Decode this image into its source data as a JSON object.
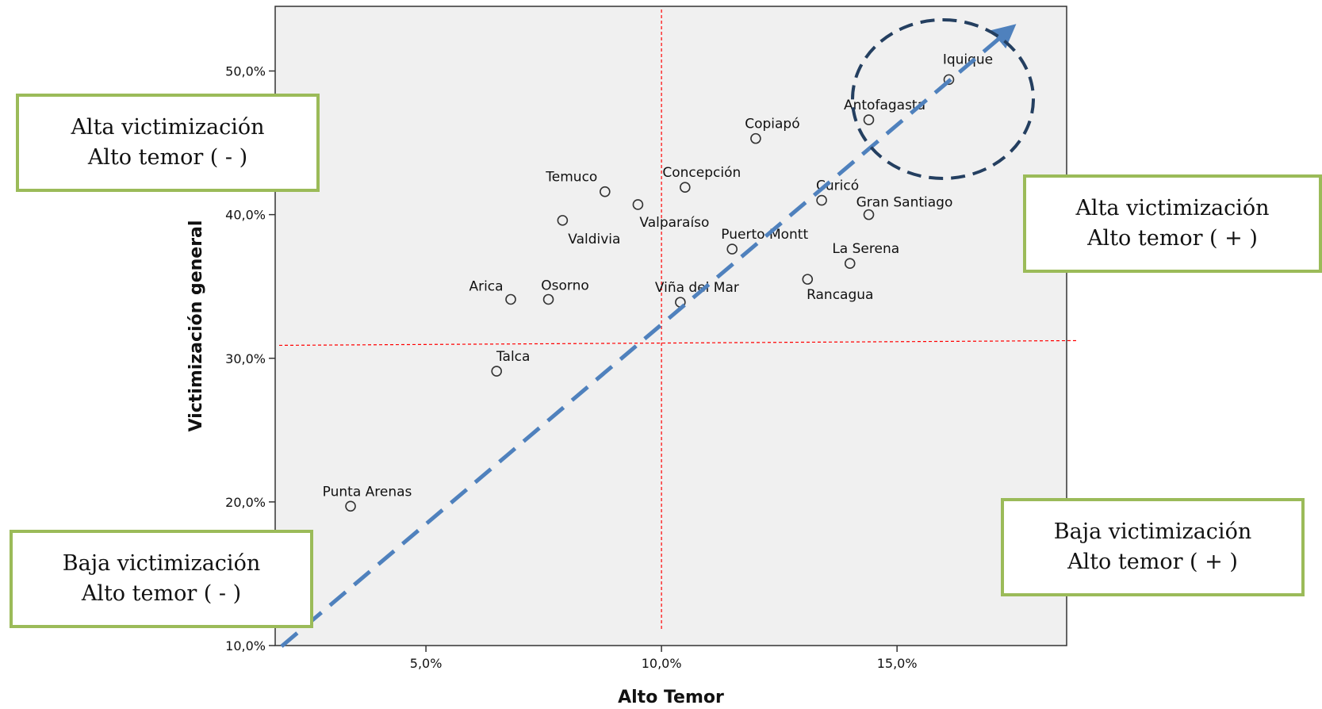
{
  "chart_data": {
    "type": "scatter",
    "xlabel": "Alto Temor",
    "ylabel": "Victimización general",
    "xlim": [
      1.8,
      18.6
    ],
    "ylim": [
      10.0,
      54.5
    ],
    "x_ticks": [
      5,
      10,
      15
    ],
    "x_tick_labels": [
      "5,0%",
      "10,0%",
      "15,0%"
    ],
    "y_ticks": [
      10,
      20,
      30,
      40,
      50
    ],
    "y_tick_labels": [
      "10,0%",
      "20,0%",
      "30,0%",
      "40,0%",
      "50,0%"
    ],
    "grid": false,
    "reference_lines": {
      "x": 10.0,
      "y": 30.9
    },
    "colors": {
      "plot_bg": "#f0f0f0",
      "reference": "#ff0000",
      "trend": "#4f81bd",
      "circle": "#243f60",
      "box_border": "#9bbb59"
    },
    "points": [
      {
        "label": "Iquique",
        "x": 16.1,
        "y": 49.4
      },
      {
        "label": "Antofagasta",
        "x": 14.4,
        "y": 46.6
      },
      {
        "label": "Copiapó",
        "x": 12.0,
        "y": 45.3
      },
      {
        "label": "Concepción",
        "x": 10.5,
        "y": 41.9
      },
      {
        "label": "Temuco",
        "x": 8.8,
        "y": 41.6
      },
      {
        "label": "Valparaíso",
        "x": 9.5,
        "y": 40.7
      },
      {
        "label": "Curicó",
        "x": 13.4,
        "y": 41.0
      },
      {
        "label": "Gran Santiago",
        "x": 14.4,
        "y": 40.0
      },
      {
        "label": "Valdivia",
        "x": 7.9,
        "y": 39.6
      },
      {
        "label": "Puerto Montt",
        "x": 11.5,
        "y": 37.6
      },
      {
        "label": "La Serena",
        "x": 14.0,
        "y": 36.6
      },
      {
        "label": "Rancagua",
        "x": 13.1,
        "y": 35.5
      },
      {
        "label": "Viña del Mar",
        "x": 10.4,
        "y": 33.9
      },
      {
        "label": "Arica",
        "x": 6.8,
        "y": 34.1
      },
      {
        "label": "Osorno",
        "x": 7.6,
        "y": 34.1
      },
      {
        "label": "Talca",
        "x": 6.5,
        "y": 29.1
      },
      {
        "label": "Punta Arenas",
        "x": 3.4,
        "y": 19.7
      }
    ]
  },
  "quadrants": {
    "top_left": {
      "line1": "Alta victimización",
      "line2": "Alto temor ( - )"
    },
    "top_right": {
      "line1": "Alta victimización",
      "line2": "Alto temor ( + )"
    },
    "bottom_left": {
      "line1": "Baja victimización",
      "line2": "Alto temor ( - )"
    },
    "bottom_right": {
      "line1": "Baja victimización",
      "line2": "Alto temor ( + )"
    }
  }
}
